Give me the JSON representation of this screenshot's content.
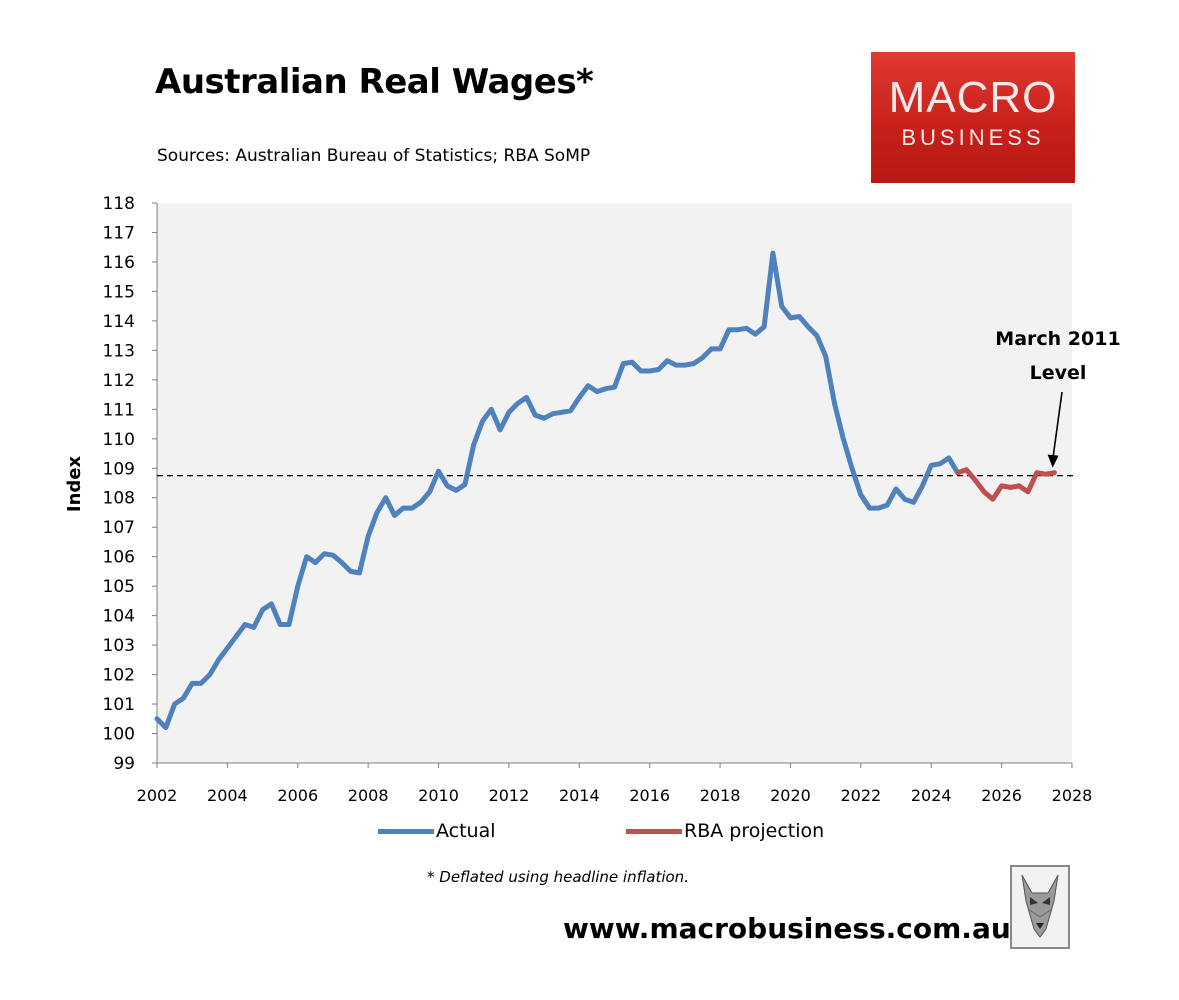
{
  "header": {
    "title": "Australian Real Wages*",
    "subtitle": "Sources: Australian Bureau of Statistics; RBA SoMP"
  },
  "logo": {
    "line1": "MACRO",
    "line2": "BUSINESS"
  },
  "footnote": "* Deflated using headline inflation.",
  "website": "www.macrobusiness.com.au",
  "colors": {
    "actual": "#4f81bd",
    "projection": "#c0504d",
    "plot_background": "#f2f2f2",
    "reference_line": "#000000"
  },
  "icons": {
    "wolf": "wolf-logo-icon"
  },
  "chart_data": {
    "type": "line",
    "title": "Australian Real Wages*",
    "ylabel": "Index",
    "xlabel": "",
    "xlim": [
      2002,
      2028
    ],
    "ylim": [
      99,
      118
    ],
    "x_ticks": [
      "2002",
      "2004",
      "2006",
      "2008",
      "2010",
      "2012",
      "2014",
      "2016",
      "2018",
      "2020",
      "2022",
      "2024",
      "2026",
      "2028"
    ],
    "y_ticks": [
      "99",
      "100",
      "101",
      "102",
      "103",
      "104",
      "105",
      "106",
      "107",
      "108",
      "109",
      "110",
      "111",
      "112",
      "113",
      "114",
      "115",
      "116",
      "117",
      "118"
    ],
    "grid": false,
    "legend_position": "bottom",
    "series": [
      {
        "name": "Actual",
        "x": [
          2002.0,
          2002.25,
          2002.5,
          2002.75,
          2003.0,
          2003.25,
          2003.5,
          2003.75,
          2004.0,
          2004.25,
          2004.5,
          2004.75,
          2005.0,
          2005.25,
          2005.5,
          2005.75,
          2006.0,
          2006.25,
          2006.5,
          2006.75,
          2007.0,
          2007.25,
          2007.5,
          2007.75,
          2008.0,
          2008.25,
          2008.5,
          2008.75,
          2009.0,
          2009.25,
          2009.5,
          2009.75,
          2010.0,
          2010.25,
          2010.5,
          2010.75,
          2011.0,
          2011.25,
          2011.5,
          2011.75,
          2012.0,
          2012.25,
          2012.5,
          2012.75,
          2013.0,
          2013.25,
          2013.5,
          2013.75,
          2014.0,
          2014.25,
          2014.5,
          2014.75,
          2015.0,
          2015.25,
          2015.5,
          2015.75,
          2016.0,
          2016.25,
          2016.5,
          2016.75,
          2017.0,
          2017.25,
          2017.5,
          2017.75,
          2018.0,
          2018.25,
          2018.5,
          2018.75,
          2019.0,
          2019.25,
          2019.5,
          2019.75,
          2020.0,
          2020.25,
          2020.5,
          2020.75,
          2021.0,
          2021.25,
          2021.5,
          2021.75,
          2022.0,
          2022.25,
          2022.5,
          2022.75,
          2023.0,
          2023.25,
          2023.5,
          2023.75,
          2024.0,
          2024.25,
          2024.5,
          2024.75
        ],
        "values": [
          100.5,
          100.2,
          101.0,
          101.2,
          101.7,
          101.7,
          102.0,
          102.5,
          102.9,
          103.3,
          103.7,
          103.6,
          104.2,
          104.4,
          103.7,
          103.7,
          105.0,
          106.0,
          105.8,
          106.1,
          106.05,
          105.8,
          105.5,
          105.45,
          106.7,
          107.5,
          108.0,
          107.4,
          107.65,
          107.65,
          107.85,
          108.2,
          108.9,
          108.4,
          108.25,
          108.45,
          109.8,
          110.6,
          111.0,
          110.3,
          110.9,
          111.2,
          111.4,
          110.8,
          110.7,
          110.85,
          110.9,
          110.95,
          111.4,
          111.8,
          111.6,
          111.7,
          111.75,
          112.55,
          112.6,
          112.3,
          112.3,
          112.35,
          112.65,
          112.5,
          112.5,
          112.55,
          112.75,
          113.05,
          113.05,
          113.7,
          113.7,
          113.75,
          113.55,
          113.8,
          116.3,
          114.5,
          114.1,
          114.15,
          113.8,
          113.5,
          112.8,
          111.2,
          110.0,
          109.0,
          108.1,
          107.65,
          107.65,
          107.75,
          108.3,
          107.95,
          107.85,
          108.4,
          109.1,
          109.15,
          109.35,
          108.85
        ]
      },
      {
        "name": "RBA projection",
        "x": [
          2024.75,
          2025.0,
          2025.25,
          2025.5,
          2025.75,
          2026.0,
          2026.25,
          2026.5,
          2026.75,
          2027.0,
          2027.25,
          2027.5
        ],
        "values": [
          108.85,
          108.95,
          108.6,
          108.2,
          107.95,
          108.4,
          108.35,
          108.4,
          108.2,
          108.85,
          108.8,
          108.85
        ]
      }
    ],
    "reference_line": {
      "y": 108.75,
      "style": "dashed"
    },
    "annotations": [
      {
        "text_line1": "March 2011",
        "text_line2": "Level",
        "target": [
          2027.45,
          108.85
        ]
      }
    ]
  }
}
